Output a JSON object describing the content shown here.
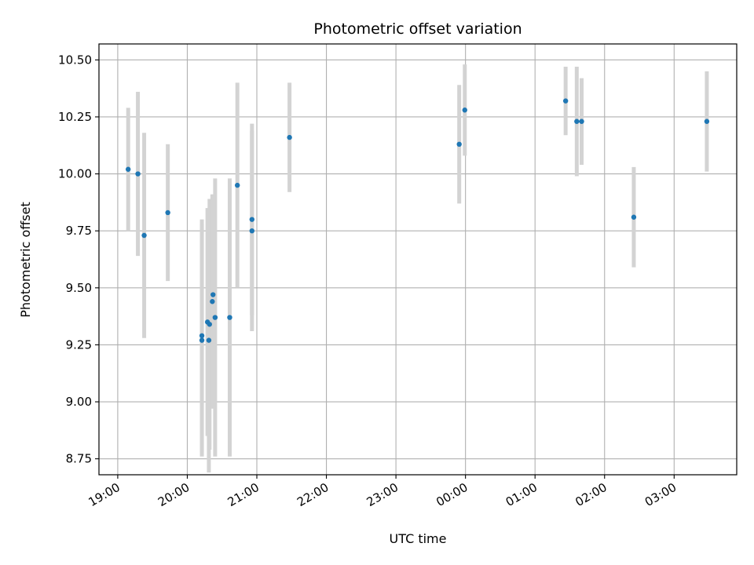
{
  "chart_data": {
    "type": "scatter",
    "title": "Photometric offset variation",
    "xlabel": "UTC time",
    "ylabel": "Photometric offset",
    "x_axis": {
      "ticks": [
        19,
        20,
        21,
        22,
        23,
        24,
        25,
        26,
        27
      ],
      "tick_labels": [
        "19:00",
        "20:00",
        "21:00",
        "22:00",
        "23:00",
        "00:00",
        "01:00",
        "02:00",
        "03:00"
      ],
      "range": [
        18.73,
        27.9
      ]
    },
    "y_axis": {
      "ticks": [
        8.75,
        9.0,
        9.25,
        9.5,
        9.75,
        10.0,
        10.25,
        10.5
      ],
      "tick_labels": [
        "8.75",
        "9.00",
        "9.25",
        "9.50",
        "9.75",
        "10.00",
        "10.25",
        "10.50"
      ],
      "range": [
        8.68,
        10.57
      ]
    },
    "grid": true,
    "colors": {
      "point": "#1f77b4",
      "errorbar": "#d3d3d3",
      "grid": "#b0b0b0"
    },
    "points": [
      {
        "x": 19.15,
        "y": 10.02,
        "err": 0.27
      },
      {
        "x": 19.29,
        "y": 10.0,
        "err": 0.36
      },
      {
        "x": 19.38,
        "y": 9.73,
        "err": 0.45
      },
      {
        "x": 19.72,
        "y": 9.83,
        "err": 0.3
      },
      {
        "x": 20.21,
        "y": 9.29,
        "err": 0.51
      },
      {
        "x": 20.21,
        "y": 9.27,
        "err": 0.51
      },
      {
        "x": 20.29,
        "y": 9.35,
        "err": 0.5
      },
      {
        "x": 20.31,
        "y": 9.27,
        "err": 0.58
      },
      {
        "x": 20.32,
        "y": 9.34,
        "err": 0.55
      },
      {
        "x": 20.36,
        "y": 9.44,
        "err": 0.47
      },
      {
        "x": 20.37,
        "y": 9.47,
        "err": 0.44
      },
      {
        "x": 20.4,
        "y": 9.37,
        "err": 0.61
      },
      {
        "x": 20.61,
        "y": 9.37,
        "err": 0.61
      },
      {
        "x": 20.72,
        "y": 9.95,
        "err": 0.45
      },
      {
        "x": 20.93,
        "y": 9.8,
        "err": 0.42
      },
      {
        "x": 20.93,
        "y": 9.75,
        "err": 0.44
      },
      {
        "x": 21.47,
        "y": 10.16,
        "err": 0.24
      },
      {
        "x": 23.91,
        "y": 10.13,
        "err": 0.26
      },
      {
        "x": 23.99,
        "y": 10.28,
        "err": 0.2
      },
      {
        "x": 25.44,
        "y": 10.32,
        "err": 0.15
      },
      {
        "x": 25.6,
        "y": 10.23,
        "err": 0.24
      },
      {
        "x": 25.67,
        "y": 10.23,
        "err": 0.19
      },
      {
        "x": 26.42,
        "y": 9.81,
        "err": 0.22
      },
      {
        "x": 27.47,
        "y": 10.23,
        "err": 0.22
      }
    ]
  }
}
